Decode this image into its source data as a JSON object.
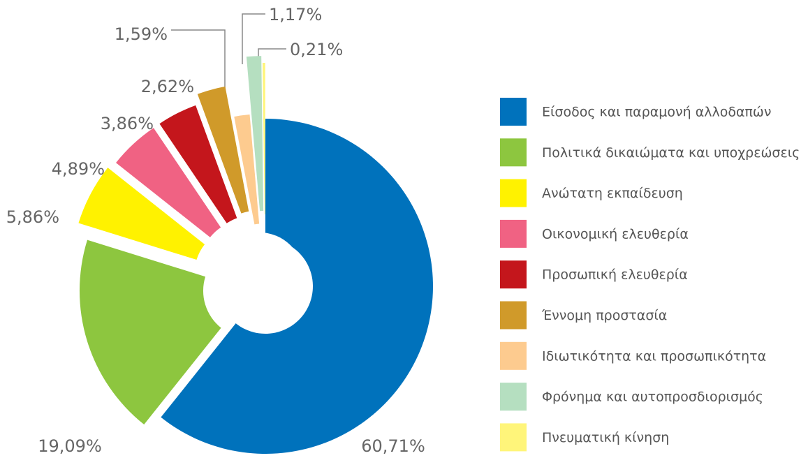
{
  "chart_data": {
    "type": "donut",
    "categories": [
      "Είσοδος και παραμονή αλλοδαπών",
      "Πολιτικά δικαιώματα και υποχρεώσεις",
      "Ανώτατη εκπαίδευση",
      "Οικονομική ελευθερία",
      "Προσωπική ελευθερία",
      "Έννομη προστασία",
      "Ιδιωτικότητα και προσωπικότητα",
      "Φρόνημα και αυτοπροσδιορισμός",
      "Πνευματική κίνηση"
    ],
    "values": [
      60.71,
      19.09,
      5.86,
      4.89,
      3.86,
      2.62,
      1.59,
      1.17,
      0.21
    ],
    "value_labels": [
      "60,71%",
      "19,09%",
      "5,86%",
      "4,89%",
      "3,86%",
      "2,62%",
      "1,59%",
      "1,17%",
      "0,21%"
    ],
    "colors": [
      "#0072bc",
      "#8dc63f",
      "#fff200",
      "#f06283",
      "#c4161c",
      "#d09a2a",
      "#fdcb8f",
      "#b5dfc0",
      "#fff57a"
    ],
    "legend": "right"
  }
}
